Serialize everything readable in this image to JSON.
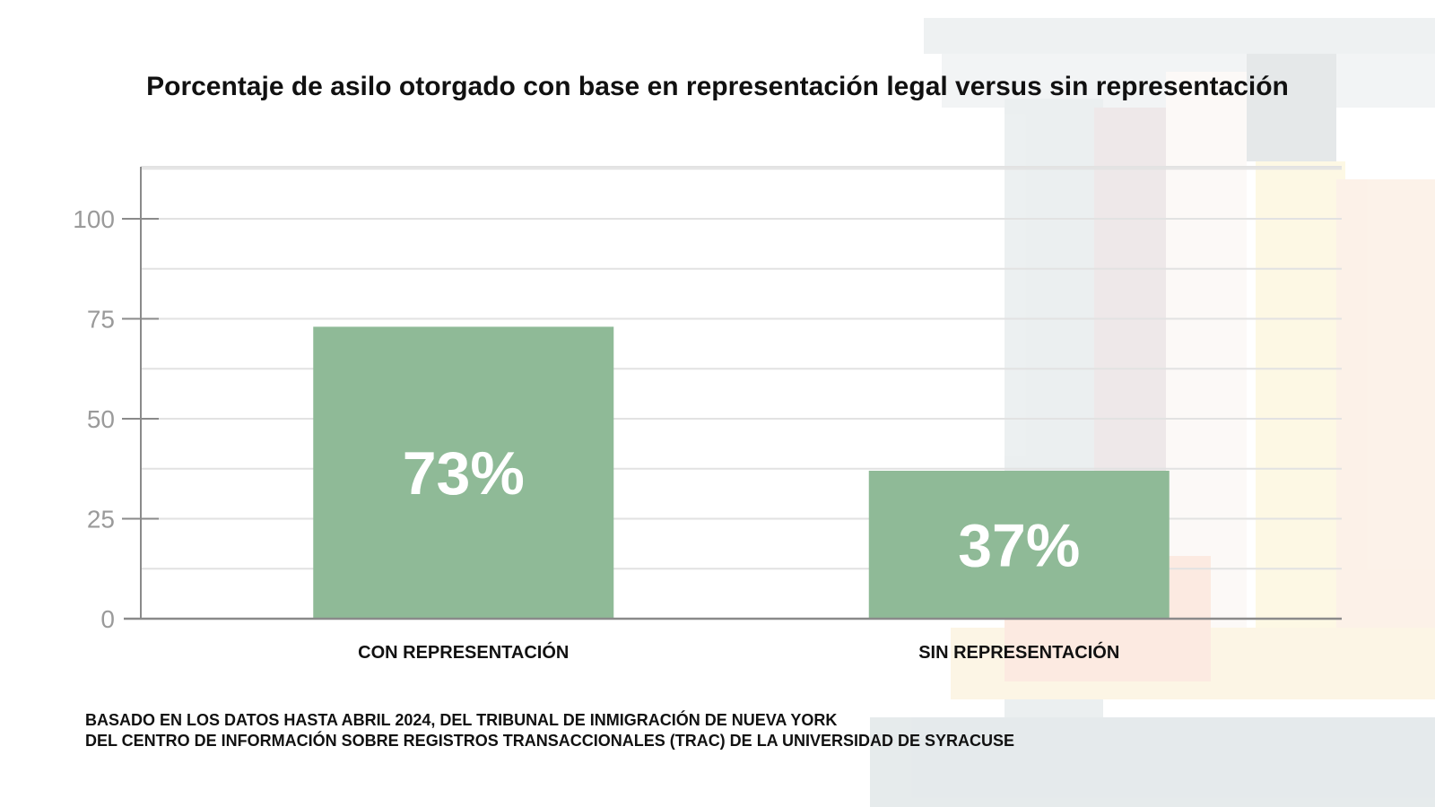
{
  "chart_data": {
    "type": "bar",
    "title": "Porcentaje de asilo otorgado con base en representación legal versus sin representación",
    "categories": [
      "CON REPRESENTACIÓN",
      "SIN REPRESENTACIÓN"
    ],
    "values": [
      73,
      37
    ],
    "data_labels": [
      "73%",
      "37%"
    ],
    "ylim": [
      0,
      113
    ],
    "yticks": [
      0,
      25,
      50,
      75,
      100
    ],
    "grid": true,
    "bar_color": "#8fba97",
    "data_label_color": "#ffffff",
    "tick_label_color": "#9a9a9a"
  },
  "source": {
    "line1": "BASADO EN LOS DATOS HASTA ABRIL 2024, DEL TRIBUNAL DE INMIGRACIÓN DE NUEVA YORK",
    "line2": "DEL CENTRO DE INFORMACIÓN SOBRE REGISTROS TRANSACCIONALES (TRAC) DE LA UNIVERSIDAD DE SYRACUSE"
  }
}
